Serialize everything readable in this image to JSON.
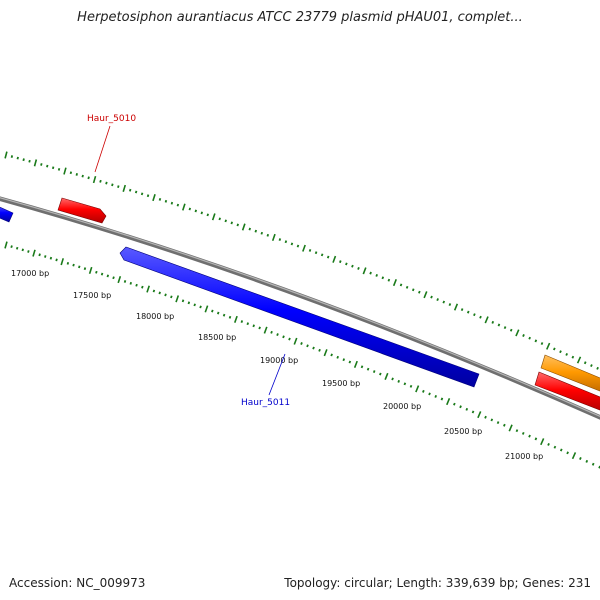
{
  "title": "Herpetosiphon aurantiacus ATCC 23779 plasmid pHAU01, complet...",
  "footer": {
    "accession": "Accession: NC_009973",
    "summary": "Topology: circular; Length: 339,639 bp; Genes: 231"
  },
  "ruler_labels": [
    "17000 bp",
    "17500 bp",
    "18000 bp",
    "18500 bp",
    "19000 bp",
    "19500 bp",
    "20000 bp",
    "20500 bp",
    "21000 bp"
  ],
  "gene_labels": {
    "haur_5010": "Haur_5010",
    "haur_5011": "Haur_5011"
  },
  "colors": {
    "backbone": "#808080",
    "forward_gene": "#ff0000",
    "reverse_gene": "#0000ff",
    "other_gene": "#ff9900",
    "ticks": "#1a7a1a",
    "label_forward": "#cc0000",
    "label_reverse": "#0000cc"
  }
}
